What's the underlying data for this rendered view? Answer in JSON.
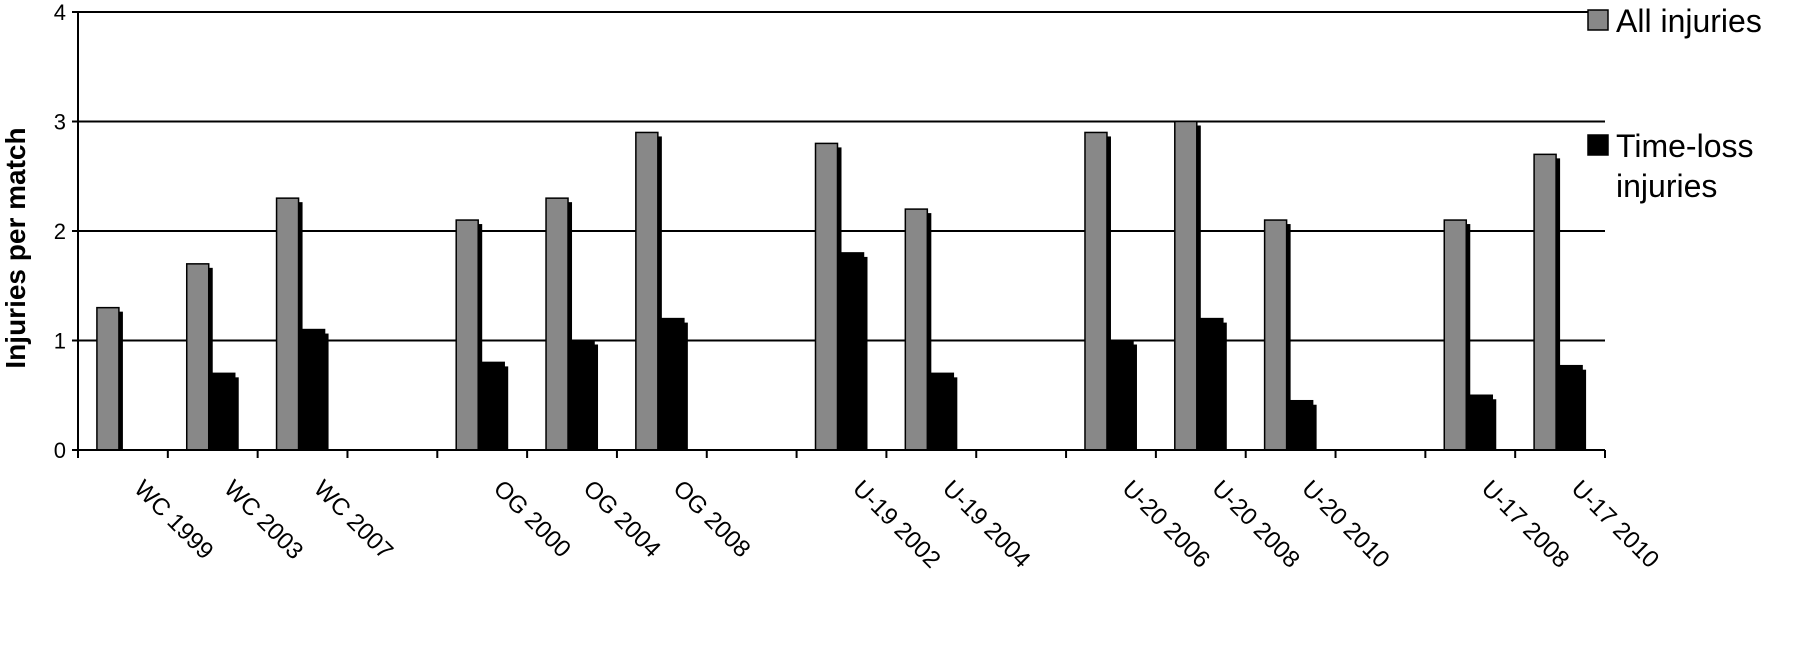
{
  "chart_data": {
    "type": "bar",
    "ylabel": "Injuries per match",
    "xlabel": "",
    "ylim": [
      0,
      4
    ],
    "yticks": [
      "0",
      "1",
      "2",
      "3",
      "4"
    ],
    "grid": true,
    "legend_position": "right",
    "slots": [
      "WC 1999",
      "WC 2003",
      "WC 2007",
      "",
      "OG 2000",
      "OG 2004",
      "OG 2008",
      "",
      "U-19 2002",
      "U-19 2004",
      "",
      "U-20 2006",
      "U-20 2008",
      "U-20 2010",
      "",
      "U-17 2008",
      "U-17 2010"
    ],
    "categories": [
      "WC 1999",
      "WC 2003",
      "WC 2007",
      "OG 2000",
      "OG 2004",
      "OG 2008",
      "U-19 2002",
      "U-19 2004",
      "U-20 2006",
      "U-20 2008",
      "U-20 2010",
      "U-17 2008",
      "U-17 2010"
    ],
    "series": [
      {
        "name": "All injuries",
        "color": "#888888",
        "values": [
          1.3,
          1.7,
          2.3,
          2.1,
          2.3,
          2.9,
          2.8,
          2.2,
          2.9,
          3.0,
          2.1,
          2.1,
          2.7
        ]
      },
      {
        "name": "Time-loss injuries",
        "color": "#000000",
        "values": [
          null,
          0.7,
          1.1,
          0.8,
          1.0,
          1.2,
          1.8,
          0.7,
          1.0,
          1.2,
          0.45,
          0.5,
          0.77
        ]
      }
    ],
    "legend": [
      {
        "lines": [
          "All injuries"
        ],
        "color": "#888888"
      },
      {
        "lines": [
          "Time-loss",
          "injuries"
        ],
        "color": "#000000"
      }
    ]
  }
}
